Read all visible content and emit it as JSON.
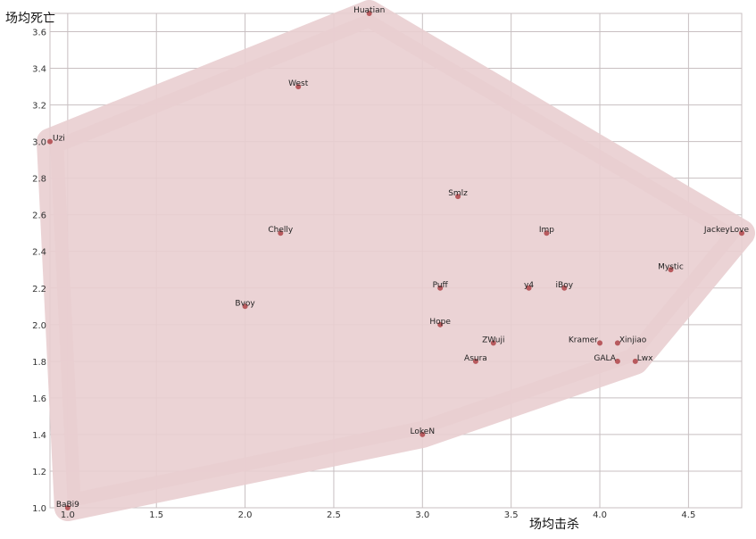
{
  "chart_data": {
    "type": "scatter",
    "xlabel": "场均击杀",
    "ylabel": "场均死亡",
    "xlim": [
      0.9,
      4.8
    ],
    "ylim": [
      1.0,
      3.7
    ],
    "xticks": [
      "1.0",
      "1.5",
      "2.0",
      "2.5",
      "3.0",
      "3.5",
      "4.0",
      "4.5"
    ],
    "yticks": [
      "1.0",
      "1.2",
      "1.4",
      "1.6",
      "1.8",
      "2.0",
      "2.2",
      "2.4",
      "2.6",
      "2.8",
      "3.0",
      "3.2",
      "3.4",
      "3.6"
    ],
    "grid": true,
    "hull": true,
    "colors": {
      "hull": "#e9ced0",
      "point": "#b85a5e",
      "grid": "#c8bfc1"
    },
    "points": [
      {
        "name": "Huatian",
        "x": 2.7,
        "y": 3.7
      },
      {
        "name": "West",
        "x": 2.3,
        "y": 3.3
      },
      {
        "name": "Uzi",
        "x": 0.9,
        "y": 3.0
      },
      {
        "name": "Smlz",
        "x": 3.2,
        "y": 2.7
      },
      {
        "name": "Chelly",
        "x": 2.2,
        "y": 2.5
      },
      {
        "name": "Imp",
        "x": 3.7,
        "y": 2.5
      },
      {
        "name": "JackeyLove",
        "x": 4.8,
        "y": 2.5
      },
      {
        "name": "Mystic",
        "x": 4.4,
        "y": 2.3
      },
      {
        "name": "Puff",
        "x": 3.1,
        "y": 2.2
      },
      {
        "name": "y4",
        "x": 3.6,
        "y": 2.2
      },
      {
        "name": "iBoy",
        "x": 3.8,
        "y": 2.2
      },
      {
        "name": "Bvoy",
        "x": 2.0,
        "y": 2.1
      },
      {
        "name": "Hope",
        "x": 3.1,
        "y": 2.0
      },
      {
        "name": "ZWuji",
        "x": 3.4,
        "y": 1.9
      },
      {
        "name": "Kramer",
        "x": 4.0,
        "y": 1.9
      },
      {
        "name": "Xinjiao",
        "x": 4.1,
        "y": 1.9
      },
      {
        "name": "Asura",
        "x": 3.3,
        "y": 1.8
      },
      {
        "name": "GALA",
        "x": 4.1,
        "y": 1.8
      },
      {
        "name": "Lwx",
        "x": 4.2,
        "y": 1.8
      },
      {
        "name": "LokeN",
        "x": 3.0,
        "y": 1.4
      },
      {
        "name": "BaBi9",
        "x": 1.0,
        "y": 1.0
      }
    ]
  }
}
